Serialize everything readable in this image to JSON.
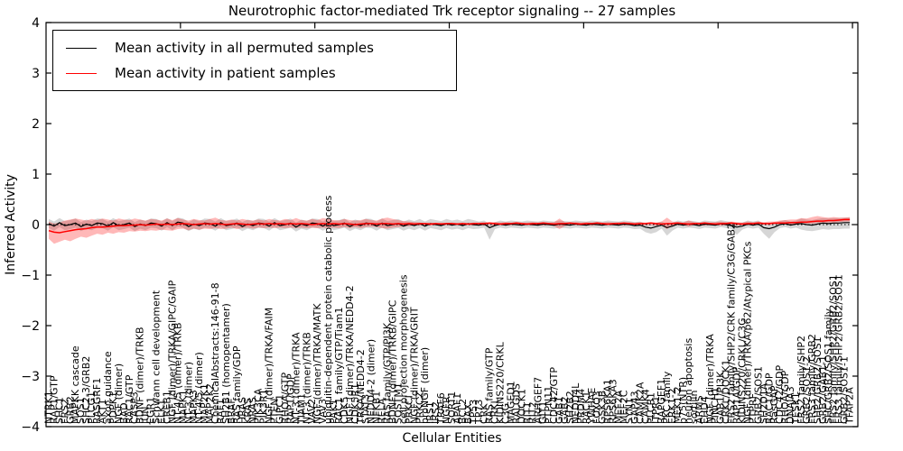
{
  "chart_data": {
    "type": "line",
    "title": "Neurotrophic factor-mediated Trk receptor signaling -- 27 samples",
    "xlabel": "Cellular Entities",
    "ylabel": "Inferred Activity",
    "ylim": [
      -4,
      4
    ],
    "xlim": [
      0,
      151
    ],
    "y_ticks": [
      4,
      3,
      2,
      1,
      0,
      -1,
      -2,
      -3,
      -4
    ],
    "x_ticks": [
      25,
      50,
      75,
      100,
      125,
      150
    ],
    "zero_line": 0,
    "legend_position": "upper left",
    "grid": false,
    "categories": [
      "NTRK1",
      "RAP1/GTP",
      "SHC1",
      "FRS2",
      "GRB2",
      "MAPKK cascade",
      "SOS1",
      "SHC2-3/GRB2",
      "PLCG1",
      "RASGRF1",
      "AKT1",
      "axon guidance",
      "PDPK1",
      "NGF (dimer)",
      "BAD",
      "RAC1/GTP",
      "CASP3",
      "BDNF (dimer)/TRKB",
      "JUN",
      "EGR1",
      "Schwann cell development",
      "ELK1",
      "CREB1",
      "NGF (dimer)/TRKA/GIPC/GAIP",
      "NT-4/5 (dimer)/TRKB",
      "MAPK1",
      "NT-3 (dimer)",
      "MAPK3",
      "NT-4/5 (dimer)",
      "MAP2K1",
      "MAP2K2",
      "ChemicalAbstracts:146-91-8",
      "RAF1",
      "SH2B1 (homopentamer)",
      "BRAF",
      "RAS family/GDP",
      "HRAS",
      "KRAS",
      "NRAS",
      "PIK3CA",
      "PIK3R1",
      "NGF (dimer)/TRKA/FAIM",
      "PTEN",
      "GIPC1",
      "RHOA/GTP",
      "RAP1/GDP",
      "NT-3 (dimer)/TRKA",
      "TIAM1",
      "NT-3 (dimer)/TRKB",
      "VAV2",
      "NGF (dimer)/TRKA/MATK",
      "VAV3",
      "ubiquitin-dependent protein catabolic process",
      "PAK1",
      "RAC1 family/GTP/Tiam1",
      "CDK5",
      "NGF (dimer)/TRKA/NEDD4-2",
      "CDK5R1",
      "TRKA/NEDD4-2",
      "STAT3",
      "NEDD4-2 (dimer)",
      "NFKB1",
      "RELA",
      "RAS family/GTP/PI3K",
      "BDNF (dimer)/TRKB/GIPC",
      "SQSTM1",
      "cell projection morphogenesis",
      "PRKCI",
      "NGF (dimer)/TRKA/GRIT",
      "PRKCZ",
      "proNGF (dimer)",
      "IRS1",
      "IRS2",
      "TRAF6",
      "NGFR",
      "SORT1",
      "APAF1",
      "BCL2",
      "BAX",
      "TP53",
      "TP73",
      "CRK",
      "RAS family/GTP",
      "CRKL",
      "KIDINS220/CRKL",
      "C3G",
      "MAGED1",
      "RALGDS",
      "DOCK1",
      "RIT1",
      "RIT2",
      "ARHGEF7",
      "GIT1",
      "PTPN11",
      "CDC42/GTP",
      "GAB1",
      "GAB2",
      "SH2B2",
      "NEDD4L",
      "PRDM4",
      "RACK1",
      "YWHAE",
      "FOXO3",
      "GSK3B",
      "RPS6KA1",
      "RPS6KA3",
      "MEF2A",
      "MEF2C",
      "SYN1",
      "GAP43",
      "CAMK2A",
      "CAMK4",
      "PLCB1",
      "ITPR1",
      "RAPGEF1",
      "PKC family",
      "ERK1-2",
      "MEK1-2",
      "p75(NTR)",
      "neuron apoptosis",
      "sortilin",
      "ARMS",
      "EHD4",
      "NGF (dimer)/TRKA",
      "PINCH1",
      "GAB1/PI3K",
      "CRKL/DOCK1",
      "FRS2 family/SHP2/CRK family/C3G/GAB2",
      "RAP1A/GDP",
      "KIDINS220/CRKL/C3G",
      "NGF (dimer)/TRKA/p62/Atypical PKCs",
      "PTPRF",
      "GRB2/SOS1",
      "SH2D1A",
      "RAC1/GDP",
      "RasGAP",
      "CDC42/GDP",
      "RHOA/GDP",
      "DNAJA3",
      "TESK1",
      "FRS2 family/SHP2",
      "GRB2/SOS1-2",
      "FRS3 family/GRB2",
      "SHP2/GRB2/SOS1",
      "GRB2/GAB1-1",
      "SHC/GRB2/SOS1 family",
      "FRS2 family/SHP2/GRB2/SOS1",
      "FRS3 family/SHP2/GRB2/SOS1",
      "GRB2/SOS1-1",
      "TFAP2A"
    ],
    "series": [
      {
        "name": "Mean activity in all permuted samples",
        "color": "#000000",
        "band_color": "#808080",
        "band_opacity": 0.32,
        "values": [
          0.02,
          -0.03,
          0.04,
          -0.02,
          0.0,
          0.03,
          -0.04,
          0.01,
          -0.02,
          0.03,
          0.02,
          -0.03,
          0.04,
          -0.02,
          0.0,
          0.03,
          -0.04,
          0.01,
          -0.02,
          0.03,
          0.02,
          -0.03,
          0.04,
          -0.02,
          0.05,
          0.03,
          -0.04,
          0.01,
          -0.02,
          0.03,
          0.02,
          -0.03,
          0.04,
          -0.02,
          0.0,
          0.03,
          -0.04,
          0.01,
          -0.02,
          0.03,
          0.02,
          -0.03,
          0.04,
          -0.02,
          0.0,
          0.03,
          -0.05,
          0.01,
          -0.02,
          0.03,
          0.02,
          -0.03,
          0.03,
          -0.02,
          0.0,
          0.03,
          -0.04,
          0.01,
          -0.02,
          0.03,
          0.02,
          -0.03,
          0.03,
          -0.02,
          0.0,
          0.02,
          -0.03,
          0.01,
          -0.02,
          0.02,
          -0.03,
          0.02,
          0.0,
          -0.02,
          0.02,
          -0.01,
          0.01,
          -0.02,
          0.02,
          0.0,
          -0.01,
          0.01,
          -0.06,
          -0.02,
          0.01,
          -0.01,
          0.01,
          0.0,
          -0.01,
          0.01,
          0.0,
          -0.01,
          0.01,
          0.0,
          -0.01,
          0.01,
          0.0,
          -0.01,
          0.01,
          0.0,
          -0.01,
          0.01,
          0.0,
          -0.01,
          0.01,
          0.0,
          -0.01,
          0.01,
          0.0,
          -0.02,
          -0.01,
          -0.05,
          -0.07,
          -0.04,
          -0.01,
          -0.06,
          -0.03,
          0.01,
          -0.01,
          0.01,
          0.0,
          -0.02,
          0.01,
          0.0,
          -0.01,
          0.02,
          0.0,
          -0.02,
          -0.05,
          -0.03,
          0.01,
          -0.01,
          0.01,
          -0.06,
          -0.08,
          -0.05,
          0.0,
          0.02,
          -0.01,
          0.01,
          0.02,
          0.0,
          -0.01,
          0.01,
          0.03,
          0.02,
          0.03,
          0.03,
          0.04,
          0.04
        ],
        "band_upper": [
          0.11,
          0.06,
          0.13,
          0.07,
          0.09,
          0.12,
          0.05,
          0.1,
          0.07,
          0.12,
          0.11,
          0.06,
          0.13,
          0.07,
          0.09,
          0.12,
          0.05,
          0.1,
          0.07,
          0.12,
          0.11,
          0.06,
          0.13,
          0.07,
          0.14,
          0.12,
          0.05,
          0.1,
          0.07,
          0.12,
          0.11,
          0.06,
          0.13,
          0.07,
          0.09,
          0.12,
          0.05,
          0.1,
          0.07,
          0.12,
          0.11,
          0.06,
          0.13,
          0.07,
          0.09,
          0.12,
          0.04,
          0.1,
          0.07,
          0.12,
          0.11,
          0.06,
          0.12,
          0.07,
          0.09,
          0.12,
          0.05,
          0.1,
          0.07,
          0.12,
          0.11,
          0.06,
          0.12,
          0.07,
          0.09,
          0.11,
          0.06,
          0.1,
          0.07,
          0.11,
          0.06,
          0.11,
          0.09,
          0.07,
          0.11,
          0.08,
          0.1,
          0.07,
          0.11,
          0.09,
          0.06,
          0.08,
          0.01,
          0.05,
          0.08,
          0.06,
          0.08,
          0.07,
          0.06,
          0.08,
          0.07,
          0.06,
          0.08,
          0.07,
          0.06,
          0.08,
          0.07,
          0.06,
          0.08,
          0.07,
          0.06,
          0.08,
          0.07,
          0.06,
          0.08,
          0.07,
          0.06,
          0.08,
          0.07,
          0.05,
          0.06,
          0.02,
          0.0,
          0.03,
          0.06,
          0.01,
          0.04,
          0.08,
          0.06,
          0.08,
          0.07,
          0.05,
          0.08,
          0.07,
          0.06,
          0.09,
          0.07,
          0.05,
          0.02,
          0.04,
          0.08,
          0.06,
          0.08,
          0.01,
          -0.01,
          0.02,
          0.07,
          0.09,
          0.06,
          0.08,
          0.12,
          0.1,
          0.09,
          0.11,
          0.13,
          0.12,
          0.13,
          0.13,
          0.14,
          0.14
        ],
        "band_lower": [
          -0.07,
          -0.12,
          -0.05,
          -0.11,
          -0.09,
          -0.06,
          -0.13,
          -0.08,
          -0.11,
          -0.06,
          -0.07,
          -0.12,
          -0.05,
          -0.11,
          -0.09,
          -0.06,
          -0.13,
          -0.08,
          -0.11,
          -0.06,
          -0.07,
          -0.12,
          -0.05,
          -0.11,
          -0.04,
          -0.06,
          -0.13,
          -0.08,
          -0.11,
          -0.06,
          -0.07,
          -0.12,
          -0.05,
          -0.11,
          -0.09,
          -0.06,
          -0.13,
          -0.08,
          -0.11,
          -0.06,
          -0.07,
          -0.12,
          -0.05,
          -0.11,
          -0.09,
          -0.06,
          -0.14,
          -0.08,
          -0.11,
          -0.06,
          -0.07,
          -0.12,
          -0.06,
          -0.11,
          -0.09,
          -0.06,
          -0.13,
          -0.08,
          -0.11,
          -0.06,
          -0.07,
          -0.12,
          -0.06,
          -0.11,
          -0.09,
          -0.07,
          -0.12,
          -0.08,
          -0.11,
          -0.07,
          -0.12,
          -0.07,
          -0.09,
          -0.11,
          -0.07,
          -0.1,
          -0.08,
          -0.11,
          -0.07,
          -0.09,
          -0.08,
          -0.06,
          -0.3,
          -0.09,
          -0.06,
          -0.08,
          -0.06,
          -0.07,
          -0.08,
          -0.06,
          -0.07,
          -0.08,
          -0.06,
          -0.07,
          -0.08,
          -0.06,
          -0.07,
          -0.08,
          -0.06,
          -0.07,
          -0.08,
          -0.06,
          -0.07,
          -0.08,
          -0.06,
          -0.07,
          -0.08,
          -0.06,
          -0.07,
          -0.09,
          -0.08,
          -0.15,
          -0.18,
          -0.15,
          -0.08,
          -0.22,
          -0.12,
          -0.06,
          -0.08,
          -0.06,
          -0.07,
          -0.09,
          -0.06,
          -0.07,
          -0.08,
          -0.05,
          -0.07,
          -0.09,
          -0.2,
          -0.1,
          -0.06,
          -0.08,
          -0.06,
          -0.18,
          -0.28,
          -0.15,
          -0.07,
          -0.05,
          -0.08,
          -0.06,
          -0.1,
          -0.12,
          -0.13,
          -0.11,
          -0.09,
          -0.1,
          -0.09,
          -0.09,
          -0.08,
          -0.08
        ]
      },
      {
        "name": "Mean activity in patient samples",
        "color": "#ff0000",
        "band_color": "#ff0000",
        "band_opacity": 0.28,
        "values": [
          -0.12,
          -0.15,
          -0.16,
          -0.14,
          -0.12,
          -0.1,
          -0.09,
          -0.08,
          -0.06,
          -0.05,
          -0.05,
          -0.04,
          -0.03,
          -0.02,
          -0.02,
          -0.01,
          -0.01,
          0.0,
          -0.01,
          0.0,
          0.01,
          0.0,
          0.01,
          0.0,
          0.01,
          0.02,
          0.01,
          0.0,
          0.01,
          0.02,
          0.01,
          0.02,
          0.01,
          0.0,
          0.01,
          0.02,
          0.01,
          0.0,
          0.01,
          0.02,
          0.01,
          0.02,
          0.01,
          0.02,
          0.01,
          0.02,
          0.01,
          0.02,
          0.01,
          0.0,
          0.01,
          0.02,
          0.01,
          0.02,
          0.01,
          0.02,
          0.01,
          0.0,
          0.01,
          0.02,
          0.02,
          0.01,
          0.02,
          0.02,
          0.01,
          0.02,
          0.01,
          0.02,
          0.01,
          0.02,
          0.02,
          0.01,
          0.02,
          0.01,
          0.02,
          0.02,
          0.01,
          0.02,
          0.01,
          0.02,
          0.02,
          0.02,
          0.03,
          0.02,
          0.01,
          0.02,
          0.02,
          0.03,
          0.02,
          0.01,
          0.02,
          0.02,
          0.03,
          0.02,
          0.01,
          0.02,
          0.02,
          0.03,
          0.02,
          0.01,
          0.02,
          0.02,
          0.03,
          0.02,
          0.01,
          0.02,
          0.02,
          0.03,
          0.02,
          0.01,
          0.02,
          0.02,
          0.03,
          0.02,
          0.01,
          0.02,
          0.02,
          0.03,
          0.02,
          0.01,
          0.02,
          0.02,
          0.03,
          0.02,
          0.01,
          0.02,
          0.02,
          0.03,
          0.02,
          0.01,
          0.02,
          0.02,
          0.03,
          0.02,
          0.02,
          0.03,
          0.03,
          0.03,
          0.04,
          0.04,
          0.05,
          0.05,
          0.06,
          0.07,
          0.07,
          0.08,
          0.08,
          0.09,
          0.1,
          0.1
        ],
        "band_upper": [
          0.06,
          0.02,
          0.04,
          0.08,
          0.1,
          0.12,
          0.1,
          0.08,
          0.11,
          0.09,
          0.12,
          0.1,
          0.08,
          0.12,
          0.1,
          0.09,
          0.12,
          0.1,
          0.08,
          0.11,
          0.1,
          0.08,
          0.12,
          0.09,
          0.13,
          0.1,
          0.08,
          0.11,
          0.09,
          0.08,
          0.11,
          0.14,
          0.09,
          0.08,
          0.1,
          0.08,
          0.11,
          0.09,
          0.08,
          0.1,
          0.08,
          0.11,
          0.09,
          0.08,
          0.11,
          0.09,
          0.13,
          0.09,
          0.08,
          0.11,
          0.09,
          0.13,
          0.11,
          0.09,
          0.08,
          0.11,
          0.09,
          0.08,
          0.09,
          0.11,
          0.09,
          0.08,
          0.12,
          0.14,
          0.11,
          0.09,
          0.07,
          0.06,
          0.05,
          0.04,
          0.03,
          0.04,
          0.03,
          0.04,
          0.03,
          0.04,
          0.03,
          0.04,
          0.03,
          0.04,
          0.04,
          0.05,
          0.04,
          0.05,
          0.04,
          0.05,
          0.04,
          0.05,
          0.04,
          0.04,
          0.05,
          0.04,
          0.05,
          0.04,
          0.05,
          0.12,
          0.05,
          0.04,
          0.05,
          0.04,
          0.05,
          0.04,
          0.05,
          0.04,
          0.05,
          0.04,
          0.05,
          0.04,
          0.05,
          0.04,
          0.05,
          0.04,
          0.05,
          0.04,
          0.06,
          0.14,
          0.06,
          0.05,
          0.04,
          0.08,
          0.05,
          0.04,
          0.05,
          0.04,
          0.05,
          0.06,
          0.05,
          0.06,
          0.05,
          0.04,
          0.06,
          0.05,
          0.06,
          0.05,
          0.06,
          0.06,
          0.08,
          0.09,
          0.1,
          0.1,
          0.13,
          0.12,
          0.15,
          0.17,
          0.15,
          0.14,
          0.15,
          0.14,
          0.14,
          0.15
        ],
        "band_lower": [
          -0.28,
          -0.38,
          -0.34,
          -0.3,
          -0.33,
          -0.28,
          -0.24,
          -0.26,
          -0.22,
          -0.18,
          -0.2,
          -0.16,
          -0.18,
          -0.15,
          -0.16,
          -0.13,
          -0.14,
          -0.12,
          -0.13,
          -0.11,
          -0.12,
          -0.1,
          -0.11,
          -0.12,
          -0.09,
          -0.08,
          -0.11,
          -0.08,
          -0.1,
          -0.08,
          -0.09,
          -0.07,
          -0.09,
          -0.08,
          -0.06,
          -0.09,
          -0.07,
          -0.06,
          -0.08,
          -0.06,
          -0.07,
          -0.06,
          -0.07,
          -0.06,
          -0.07,
          -0.06,
          -0.07,
          -0.06,
          -0.07,
          -0.06,
          -0.07,
          -0.06,
          -0.07,
          -0.06,
          -0.07,
          -0.05,
          -0.07,
          -0.05,
          -0.07,
          -0.05,
          -0.04,
          -0.05,
          -0.07,
          -0.08,
          -0.06,
          -0.05,
          -0.04,
          -0.03,
          -0.02,
          -0.02,
          -0.01,
          -0.02,
          -0.01,
          -0.02,
          -0.01,
          -0.02,
          -0.01,
          -0.02,
          -0.01,
          -0.02,
          -0.01,
          -0.02,
          -0.01,
          -0.02,
          -0.01,
          -0.02,
          -0.01,
          -0.01,
          -0.02,
          -0.01,
          -0.02,
          -0.01,
          -0.02,
          -0.01,
          -0.03,
          -0.09,
          -0.03,
          -0.01,
          -0.01,
          -0.02,
          -0.01,
          -0.02,
          -0.01,
          -0.01,
          -0.02,
          -0.01,
          -0.01,
          -0.02,
          -0.01,
          -0.01,
          -0.02,
          -0.01,
          -0.01,
          -0.02,
          -0.02,
          -0.09,
          -0.02,
          -0.01,
          -0.01,
          -0.04,
          -0.01,
          -0.01,
          -0.02,
          -0.01,
          -0.01,
          -0.02,
          -0.01,
          -0.01,
          -0.02,
          -0.01,
          -0.01,
          0.0,
          -0.01,
          0.0,
          -0.01,
          0.0,
          0.0,
          0.0,
          0.0,
          0.01,
          0.01,
          0.02,
          0.02,
          0.03,
          0.03,
          0.04,
          0.04,
          0.05,
          0.06,
          0.06
        ]
      }
    ]
  }
}
